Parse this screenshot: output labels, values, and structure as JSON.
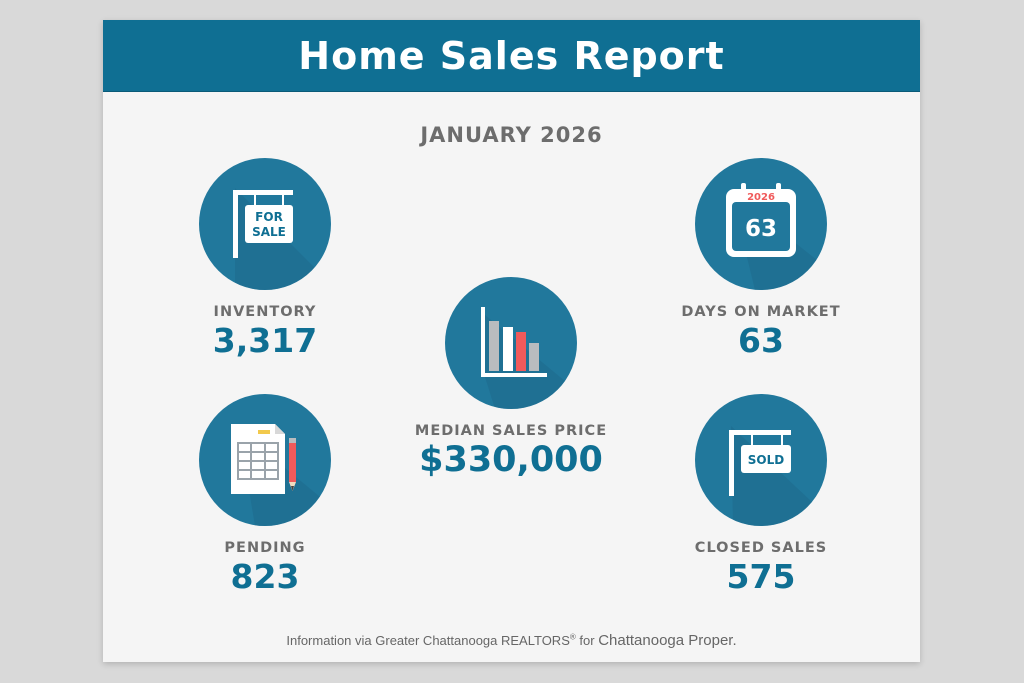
{
  "report": {
    "title": "Home Sales Report",
    "period": "JANUARY 2026"
  },
  "stats": {
    "inventory": {
      "label": "INVENTORY",
      "value": "3,317",
      "icon": "for-sale-sign-icon",
      "icon_text": [
        "FOR",
        "SALE"
      ]
    },
    "days_on_market": {
      "label": "DAYS ON MARKET",
      "value": "63",
      "icon": "calendar-icon",
      "calendar_year": "2026",
      "calendar_day": "63"
    },
    "median_sales_price": {
      "label": "MEDIAN SALES PRICE",
      "value": "$330,000",
      "icon": "bar-chart-icon"
    },
    "pending": {
      "label": "PENDING",
      "value": "823",
      "icon": "document-pencil-icon"
    },
    "closed_sales": {
      "label": "CLOSED SALES",
      "value": "575",
      "icon": "sold-sign-icon",
      "icon_text": "SOLD"
    }
  },
  "footer": {
    "source": "Information via Greater Chattanooga REALTORS",
    "mark": "®",
    "connector": " for ",
    "place": "Chattanooga Proper."
  },
  "colors": {
    "header": "#0f6f93",
    "circle": "#21789c",
    "value": "#0f6f93",
    "label": "#6d6d6d",
    "accent_red": "#f05a5b"
  }
}
